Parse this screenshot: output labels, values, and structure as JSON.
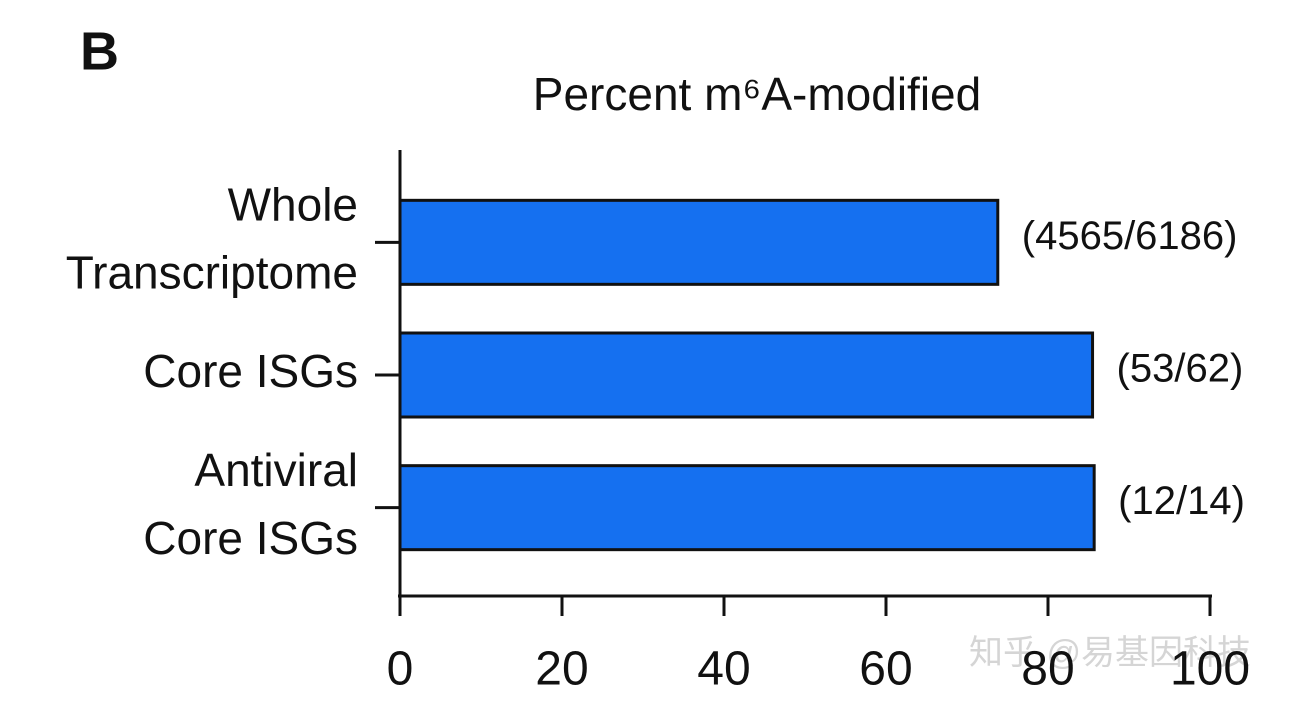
{
  "panel_label": "B",
  "watermark": "知乎 @易基因科技",
  "chart_data": {
    "type": "bar",
    "orientation": "horizontal",
    "title": "Percent m⁶A-modified",
    "categories": [
      [
        "Whole",
        "Transcriptome"
      ],
      [
        "Core ISGs"
      ],
      [
        "Antiviral",
        "Core ISGs"
      ]
    ],
    "values": [
      73.8,
      85.5,
      85.7
    ],
    "value_labels": [
      "(4565/6186)",
      "(53/62)",
      "(12/14)"
    ],
    "color": "#1570f0",
    "xlim": [
      0,
      100
    ],
    "xticks": [
      0,
      20,
      40,
      60,
      80,
      100
    ]
  }
}
